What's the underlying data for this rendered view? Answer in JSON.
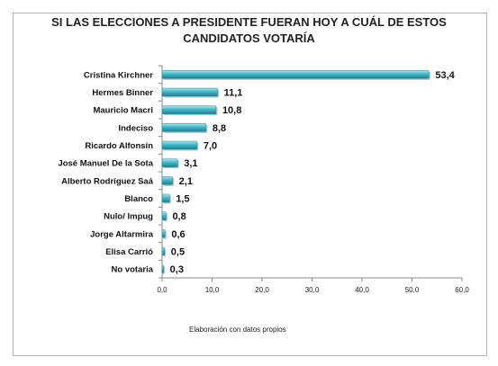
{
  "chart_data": {
    "type": "bar",
    "orientation": "horizontal",
    "title_lines": [
      "SI LAS ELECCIONES A PRESIDENTE FUERAN HOY A CUÁL DE ESTOS",
      "CANDIDATOS VOTARÍA"
    ],
    "categories": [
      "Cristina Kirchner",
      "Hermes Binner",
      "Mauricio Macri",
      "Indeciso",
      "Ricardo Alfonsín",
      "José Manuel De la Sota",
      "Alberto Rodríguez Saá",
      "Blanco",
      "Nulo/ Impug",
      "Jorge Altarmira",
      "Elisa Carrió",
      "No votaria"
    ],
    "values": [
      53.4,
      11.1,
      10.8,
      8.8,
      7.0,
      3.1,
      2.1,
      1.5,
      0.8,
      0.6,
      0.5,
      0.3
    ],
    "value_labels": [
      "53,4",
      "11,1",
      "10,8",
      "8,8",
      "7,0",
      "3,1",
      "2,1",
      "1,5",
      "0,8",
      "0,6",
      "0,5",
      "0,3"
    ],
    "xlim": [
      0,
      60
    ],
    "x_ticks": [
      "0,0",
      "10,0",
      "20,0",
      "30,0",
      "40,0",
      "50,0",
      "60,0"
    ],
    "x_tick_values": [
      0,
      10,
      20,
      30,
      40,
      50,
      60
    ],
    "grid": false,
    "bar_color": "#3fb8c9"
  },
  "note": "Elaboración con datos propios"
}
